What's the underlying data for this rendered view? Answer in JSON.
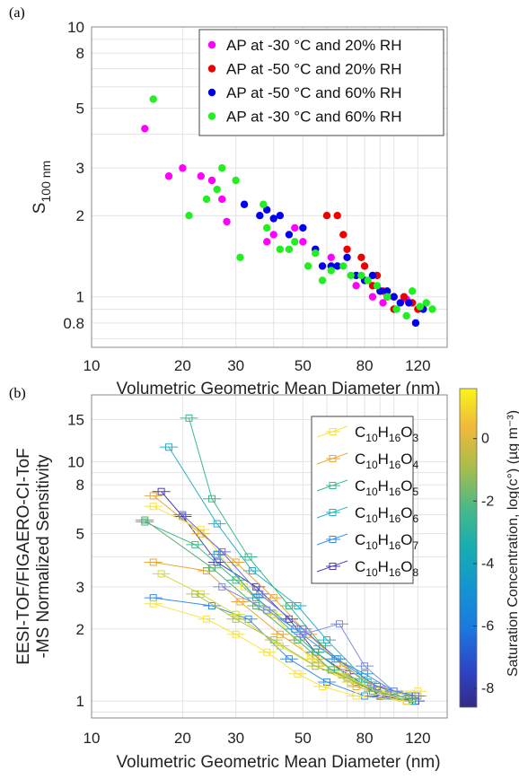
{
  "panel_a_label": "(a)",
  "panel_b_label": "(b)",
  "chart_data": [
    {
      "type": "scatter",
      "xlabel": "Volumetric Geometric Mean Diameter (nm)",
      "ylabel": "S",
      "ylabel_sub": "100 nm",
      "xscale": "log",
      "yscale": "log",
      "xlim": [
        10,
        150
      ],
      "ylim": [
        0.65,
        10
      ],
      "xticks": [
        10,
        20,
        30,
        50,
        80,
        120
      ],
      "yticks": [
        0.8,
        1,
        2,
        3,
        5,
        8,
        10
      ],
      "grid": true,
      "legend_position": "top-right",
      "series": [
        {
          "name": "AP at -30 °C and 20% RH",
          "color": "#ff00ff",
          "points": [
            [
              15,
              4.2
            ],
            [
              18,
              2.8
            ],
            [
              20,
              3.0
            ],
            [
              23,
              2.8
            ],
            [
              25,
              2.7
            ],
            [
              27,
              2.3
            ],
            [
              28,
              1.9
            ],
            [
              38,
              1.6
            ],
            [
              40,
              1.7
            ],
            [
              47,
              1.8
            ],
            [
              50,
              1.6
            ],
            [
              55,
              1.5
            ],
            [
              62,
              1.4
            ],
            [
              75,
              1.1
            ],
            [
              85,
              1.0
            ],
            [
              92,
              0.95
            ],
            [
              100,
              1.0
            ],
            [
              110,
              0.98
            ],
            [
              115,
              0.95
            ]
          ]
        },
        {
          "name": "AP at -50 °C and 20% RH",
          "color": "#ee0000",
          "points": [
            [
              60,
              2.0
            ],
            [
              65,
              2.0
            ],
            [
              68,
              1.7
            ],
            [
              70,
              1.5
            ],
            [
              78,
              1.4
            ],
            [
              80,
              1.3
            ],
            [
              85,
              1.1
            ],
            [
              88,
              1.2
            ],
            [
              92,
              1.05
            ],
            [
              95,
              1.0
            ],
            [
              100,
              0.9
            ],
            [
              108,
              1.0
            ],
            [
              115,
              0.95
            ],
            [
              120,
              0.9
            ]
          ]
        },
        {
          "name": "AP at -50 °C and 60% RH",
          "color": "#0000ee",
          "points": [
            [
              32,
              2.2
            ],
            [
              36,
              2.0
            ],
            [
              38,
              2.1
            ],
            [
              40,
              1.95
            ],
            [
              42,
              2.0
            ],
            [
              45,
              1.7
            ],
            [
              50,
              1.8
            ],
            [
              55,
              1.5
            ],
            [
              58,
              1.3
            ],
            [
              62,
              1.3
            ],
            [
              65,
              1.3
            ],
            [
              70,
              1.4
            ],
            [
              75,
              1.2
            ],
            [
              80,
              1.15
            ],
            [
              85,
              1.2
            ],
            [
              90,
              1.05
            ],
            [
              95,
              1.05
            ],
            [
              100,
              1.0
            ],
            [
              105,
              0.95
            ],
            [
              112,
              0.95
            ],
            [
              118,
              0.8
            ],
            [
              125,
              0.9
            ]
          ]
        },
        {
          "name": "AP at -30 °C and 60% RH",
          "color": "#22ee22",
          "points": [
            [
              16,
              5.4
            ],
            [
              21,
              2.0
            ],
            [
              24,
              2.3
            ],
            [
              26,
              2.5
            ],
            [
              27,
              3.0
            ],
            [
              30,
              2.7
            ],
            [
              31,
              1.4
            ],
            [
              37,
              2.2
            ],
            [
              38,
              1.8
            ],
            [
              42,
              1.5
            ],
            [
              45,
              1.5
            ],
            [
              47,
              1.6
            ],
            [
              52,
              1.3
            ],
            [
              55,
              1.45
            ],
            [
              58,
              1.15
            ],
            [
              62,
              1.25
            ],
            [
              68,
              1.3
            ],
            [
              72,
              1.2
            ],
            [
              78,
              1.2
            ],
            [
              82,
              1.15
            ],
            [
              88,
              1.1
            ],
            [
              95,
              1.0
            ],
            [
              102,
              0.9
            ],
            [
              110,
              0.85
            ],
            [
              115,
              1.05
            ],
            [
              122,
              0.92
            ],
            [
              128,
              0.95
            ],
            [
              134,
              0.9
            ]
          ]
        }
      ]
    },
    {
      "type": "line",
      "xlabel": "Volumetric Geometric Mean Diameter (nm)",
      "ylabel_line1": "EESI-TOF/FIGAERO-CI-ToF",
      "ylabel_line2": "-MS Normalized Sensitivity",
      "xscale": "log",
      "yscale": "log",
      "xlim": [
        10,
        150
      ],
      "ylim": [
        0.85,
        19
      ],
      "xticks": [
        10,
        20,
        30,
        50,
        80,
        120
      ],
      "yticks": [
        1,
        2,
        3,
        5,
        8,
        10,
        15
      ],
      "grid": true,
      "legend_position": "top-right",
      "legend": [
        {
          "formula": [
            "C",
            "10",
            "H",
            "16",
            "O",
            "3"
          ],
          "color": "#f5e342"
        },
        {
          "formula": [
            "C",
            "10",
            "H",
            "16",
            "O",
            "4"
          ],
          "color": "#e8a93a"
        },
        {
          "formula": [
            "C",
            "10",
            "H",
            "16",
            "O",
            "5"
          ],
          "color": "#3cb98a"
        },
        {
          "formula": [
            "C",
            "10",
            "H",
            "16",
            "O",
            "6"
          ],
          "color": "#2ab0c9"
        },
        {
          "formula": [
            "C",
            "10",
            "H",
            "16",
            "O",
            "7"
          ],
          "color": "#3a8ee8"
        },
        {
          "formula": [
            "C",
            "10",
            "H",
            "16",
            "O",
            "8"
          ],
          "color": "#4a3fb0"
        }
      ],
      "colorbar": {
        "label": "Saturation Concentration, log(c°) (µg m⁻³)",
        "ticks": [
          0,
          -2,
          -4,
          -6,
          -8
        ],
        "range": [
          -8.6,
          1.6
        ]
      },
      "series": [
        {
          "color": "#4a3fb0",
          "values": [
            [
              17,
              7.5
            ],
            [
              20,
              5.9
            ],
            [
              26,
              3.8
            ],
            [
              35,
              3.0
            ],
            [
              45,
              2.2
            ],
            [
              55,
              1.6
            ],
            [
              70,
              1.3
            ],
            [
              90,
              1.05
            ],
            [
              118,
              1.0
            ]
          ]
        },
        {
          "color": "#3a8ee8",
          "values": [
            [
              16,
              2.7
            ],
            [
              25,
              2.5
            ],
            [
              33,
              2.2
            ],
            [
              45,
              1.5
            ],
            [
              60,
              1.2
            ],
            [
              80,
              1.05
            ],
            [
              115,
              1.0
            ]
          ]
        },
        {
          "color": "#2ab0c9",
          "values": [
            [
              18,
              11.5
            ],
            [
              26,
              5.5
            ],
            [
              34,
              3.5
            ],
            [
              48,
              2.5
            ],
            [
              60,
              1.8
            ],
            [
              82,
              1.2
            ],
            [
              115,
              1.0
            ]
          ]
        },
        {
          "color": "#3cb98a",
          "values": [
            [
              21,
              15.2
            ],
            [
              25,
              7.0
            ],
            [
              33,
              4.0
            ],
            [
              45,
              2.5
            ],
            [
              58,
              1.7
            ],
            [
              80,
              1.2
            ],
            [
              112,
              1.05
            ]
          ]
        },
        {
          "color": "#3cb98a",
          "values": [
            [
              15,
              5.6
            ],
            [
              22,
              4.5
            ],
            [
              30,
              3.2
            ],
            [
              40,
              2.3
            ],
            [
              55,
              1.6
            ],
            [
              75,
              1.2
            ],
            [
              110,
              1.0
            ]
          ]
        },
        {
          "color": "#e8a93a",
          "values": [
            [
              16,
              7.2
            ],
            [
              23,
              5.0
            ],
            [
              30,
              3.8
            ],
            [
              40,
              2.7
            ],
            [
              52,
              1.9
            ],
            [
              68,
              1.4
            ],
            [
              92,
              1.1
            ],
            [
              120,
              1.05
            ]
          ]
        },
        {
          "color": "#e8a93a",
          "values": [
            [
              16,
              3.8
            ],
            [
              24,
              3.5
            ],
            [
              31,
              2.6
            ],
            [
              42,
              1.9
            ],
            [
              55,
              1.5
            ],
            [
              75,
              1.15
            ],
            [
              110,
              1.0
            ]
          ]
        },
        {
          "color": "#f5e342",
          "values": [
            [
              16,
              6.5
            ],
            [
              23,
              5.2
            ],
            [
              32,
              3.0
            ],
            [
              40,
              2.3
            ],
            [
              53,
              1.5
            ],
            [
              67,
              1.3
            ],
            [
              88,
              1.1
            ],
            [
              120,
              1.1
            ]
          ]
        },
        {
          "color": "#f5e342",
          "values": [
            [
              16,
              2.55
            ],
            [
              24,
              2.2
            ],
            [
              30,
              1.9
            ],
            [
              38,
              1.6
            ],
            [
              48,
              1.3
            ],
            [
              58,
              1.15
            ],
            [
              75,
              1.05
            ],
            [
              110,
              1.0
            ]
          ]
        },
        {
          "color": "#d6da3a",
          "values": [
            [
              17,
              3.4
            ],
            [
              23,
              2.8
            ],
            [
              30,
              2.3
            ],
            [
              42,
              1.7
            ],
            [
              55,
              1.4
            ],
            [
              72,
              1.2
            ],
            [
              100,
              1.05
            ]
          ]
        },
        {
          "color": "#57b06e",
          "values": [
            [
              15,
              5.7
            ],
            [
              25,
              3.6
            ],
            [
              35,
              2.5
            ],
            [
              48,
              1.8
            ],
            [
              62,
              1.35
            ],
            [
              85,
              1.1
            ],
            [
              115,
              1.02
            ]
          ]
        },
        {
          "color": "#6b72d6",
          "values": [
            [
              20,
              6.0
            ],
            [
              27,
              4.2
            ],
            [
              36,
              2.8
            ],
            [
              50,
              2.0
            ],
            [
              65,
              1.5
            ],
            [
              88,
              1.15
            ],
            [
              118,
              1.05
            ]
          ]
        },
        {
          "color": "#2f9fd8",
          "values": [
            [
              26,
              4.1
            ],
            [
              35,
              2.7
            ],
            [
              47,
              2.0
            ],
            [
              64,
              1.5
            ],
            [
              80,
              1.3
            ],
            [
              100,
              1.1
            ]
          ]
        },
        {
          "color": "#b0c44a",
          "values": [
            [
              22,
              2.8
            ],
            [
              30,
              2.2
            ],
            [
              40,
              1.8
            ],
            [
              55,
              1.4
            ],
            [
              70,
              1.25
            ],
            [
              95,
              1.05
            ]
          ]
        },
        {
          "color": "#7e8ce0",
          "values": [
            [
              27,
              3.0
            ],
            [
              38,
              2.4
            ],
            [
              50,
              1.9
            ],
            [
              66,
              2.1
            ],
            [
              80,
              1.4
            ],
            [
              100,
              1.1
            ]
          ]
        }
      ]
    }
  ]
}
